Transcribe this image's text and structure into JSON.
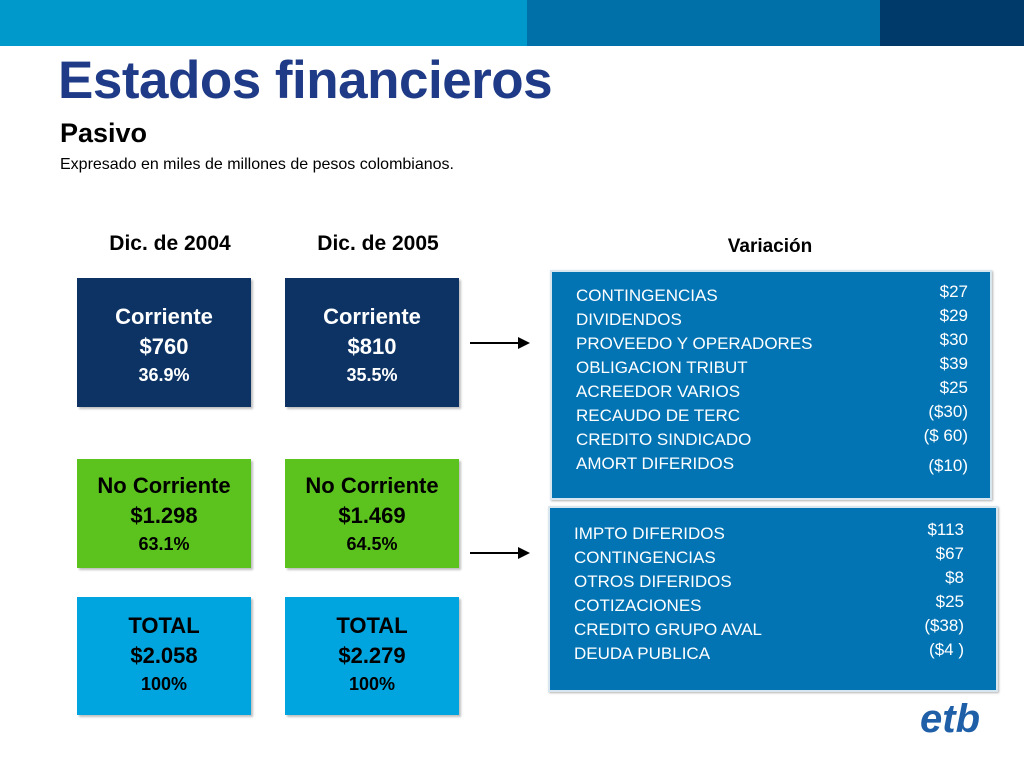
{
  "header": {
    "title": "Estados financieros",
    "subtitle": "Pasivo",
    "note": "Expresado en miles de millones de pesos colombianos."
  },
  "columns": [
    {
      "heading": "Dic. de 2004"
    },
    {
      "heading": "Dic. de 2005"
    }
  ],
  "variation_heading": "Variación",
  "boxes": {
    "y2004": {
      "corriente": {
        "label": "Corriente",
        "value": "$760",
        "pct": "36.9%"
      },
      "no_corriente": {
        "label": "No Corriente",
        "value": "$1.298",
        "pct": "63.1%"
      },
      "total": {
        "label": "TOTAL",
        "value": "$2.058",
        "pct": "100%"
      }
    },
    "y2005": {
      "corriente": {
        "label": "Corriente",
        "value": "$810",
        "pct": "35.5%"
      },
      "no_corriente": {
        "label": "No Corriente",
        "value": "$1.469",
        "pct": "64.5%"
      },
      "total": {
        "label": "TOTAL",
        "value": "$2.279",
        "pct": "100%"
      }
    }
  },
  "variation_corriente": [
    {
      "label": "CONTINGENCIAS",
      "value": "$27"
    },
    {
      "label": "DIVIDENDOS",
      "value": "$29"
    },
    {
      "label": "PROVEEDO Y OPERADORES",
      "value": "$30"
    },
    {
      "label": "OBLIGACION TRIBUT",
      "value": "$39"
    },
    {
      "label": "ACREEDOR VARIOS",
      "value": "$25"
    },
    {
      "label": "RECAUDO DE TERC",
      "value": "($30)"
    },
    {
      "label": "CREDITO SINDICADO",
      "value": "($ 60)"
    },
    {
      "label": "AMORT DIFERIDOS",
      "value": "($10)"
    }
  ],
  "variation_no_corriente": [
    {
      "label": "IMPTO DIFERIDOS",
      "value": "$113"
    },
    {
      "label": "CONTINGENCIAS",
      "value": "$67"
    },
    {
      "label": "OTROS DIFERIDOS",
      "value": "$8"
    },
    {
      "label": "COTIZACIONES",
      "value": "$25"
    },
    {
      "label": "CREDITO GRUPO AVAL",
      "value": "($38)"
    },
    {
      "label": "DEUDA PUBLICA",
      "value": "($4 )"
    }
  ],
  "colors": {
    "title": "#1f3a86",
    "navy_box": "#0c3364",
    "green_box": "#5cc31e",
    "cyan_box": "#00a5df",
    "panel": "#0273b3"
  },
  "logo": {
    "icon": "etb-logo",
    "text": "etb"
  }
}
